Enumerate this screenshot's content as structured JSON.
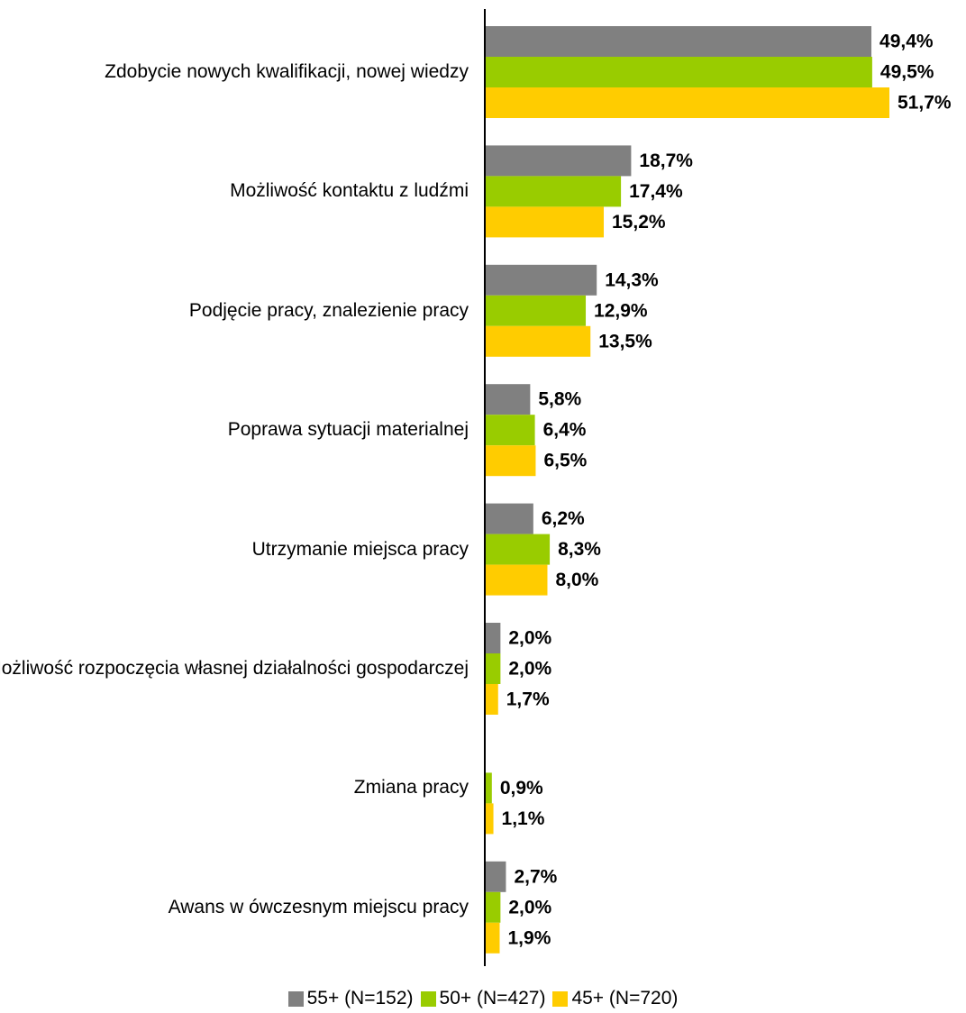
{
  "chart_data": {
    "type": "bar",
    "orientation": "horizontal",
    "categories": [
      "Zdobycie nowych kwalifikacji, nowej wiedzy",
      "Możliwość kontaktu z ludźmi",
      "Podjęcie pracy, znalezienie pracy",
      "Poprawa sytuacji materialnej",
      "Utrzymanie miejsca pracy",
      "Możliwość rozpoczęcia własnej działalności gospodarczej",
      "Zmiana pracy",
      "Awans w ówczesnym miejscu pracy"
    ],
    "series": [
      {
        "name": "55+ (N=152)",
        "color": "#808080",
        "values": [
          49.4,
          18.7,
          14.3,
          5.8,
          6.2,
          2.0,
          null,
          2.7
        ],
        "value_labels": [
          "49,4%",
          "18,7%",
          "14,3%",
          "5,8%",
          "6,2%",
          "2,0%",
          null,
          "2,7%"
        ]
      },
      {
        "name": "50+ (N=427)",
        "color": "#99cc00",
        "values": [
          49.5,
          17.4,
          12.9,
          6.4,
          8.3,
          2.0,
          0.9,
          2.0
        ],
        "value_labels": [
          "49,5%",
          "17,4%",
          "12,9%",
          "6,4%",
          "8,3%",
          "2,0%",
          "0,9%",
          "2,0%"
        ]
      },
      {
        "name": "45+ (N=720)",
        "color": "#ffcc00",
        "values": [
          51.7,
          15.2,
          13.5,
          6.5,
          8.0,
          1.7,
          1.1,
          1.9
        ],
        "value_labels": [
          "51,7%",
          "15,2%",
          "13,5%",
          "6,5%",
          "8,0%",
          "1,7%",
          "1,1%",
          "1,9%"
        ]
      }
    ],
    "legend": "bottom"
  }
}
